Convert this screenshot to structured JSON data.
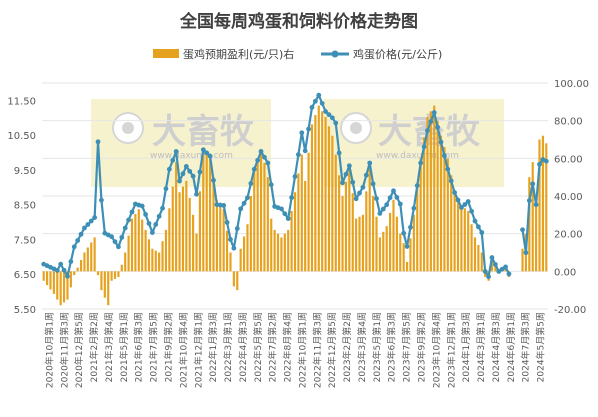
{
  "chart_data": {
    "type": "bar+line",
    "title": "全国每周鸡蛋和饲料价格走势图",
    "legend": [
      {
        "name": "蛋鸡预期盈利(元/只)右",
        "type": "bar",
        "color": "#e6a21e"
      },
      {
        "name": "鸡蛋价格(元/公斤)",
        "type": "line",
        "color": "#3d8fb5"
      }
    ],
    "legend_position": "top",
    "watermark": "大畜牧 www.daxumu.com",
    "y_left": {
      "min": 5.5,
      "max": 12.0,
      "ticks": [
        "5.50",
        "6.50",
        "7.50",
        "8.50",
        "9.50",
        "10.50",
        "11.50"
      ]
    },
    "y_right": {
      "min": -20.0,
      "max": 100.0,
      "ticks": [
        "-20.00",
        "0.00",
        "20.00",
        "40.00",
        "60.00",
        "80.00",
        "100.00"
      ]
    },
    "x_tick_labels": [
      "2020年10月第1周",
      "2020年11月第3周",
      "2020年12月第5周",
      "2021年2月第2周",
      "2021年3月第4周",
      "2021年5月第1周",
      "2021年6月第3周",
      "2021年7月第5周",
      "2021年9月第2周",
      "2021年10月第4周",
      "2021年12月第1周",
      "2022年1月第3周",
      "2022年3月第1周",
      "2022年4月第3周",
      "2022年5月第5周",
      "2022年7月第2周",
      "2022年8月第4周",
      "2022年10月第1周",
      "2022年11月第3周",
      "2022年12月第5周",
      "2023年2月第2周",
      "2023年3月第4周",
      "2023年5月第1周",
      "2023年6月第3周",
      "2023年7月第5周",
      "2023年9月第2周",
      "2023年10月第4周",
      "2023年12月第1周",
      "2024年1月第3周",
      "2024年3月第1周",
      "2024年4月第3周",
      "2024年6月第1周",
      "2024年7月第3周",
      "2024年5月第5周"
    ],
    "egg_price_anchors": [
      [
        0,
        6.79
      ],
      [
        4,
        6.61
      ],
      [
        5,
        6.79
      ],
      [
        7,
        6.44
      ],
      [
        9,
        7.29
      ],
      [
        12,
        7.83
      ],
      [
        15,
        8.13
      ],
      [
        16,
        10.31
      ],
      [
        17,
        8.63
      ],
      [
        18,
        7.68
      ],
      [
        20,
        7.58
      ],
      [
        22,
        7.29
      ],
      [
        24,
        7.83
      ],
      [
        27,
        8.52
      ],
      [
        29,
        8.46
      ],
      [
        30,
        8.22
      ],
      [
        32,
        7.7
      ],
      [
        35,
        8.4
      ],
      [
        37,
        9.52
      ],
      [
        39,
        10.03
      ],
      [
        40,
        9.18
      ],
      [
        42,
        9.6
      ],
      [
        44,
        9.32
      ],
      [
        45,
        8.8
      ],
      [
        47,
        10.08
      ],
      [
        49,
        9.9
      ],
      [
        51,
        8.5
      ],
      [
        53,
        8.48
      ],
      [
        55,
        7.5
      ],
      [
        56,
        7.25
      ],
      [
        58,
        8.38
      ],
      [
        60,
        8.7
      ],
      [
        62,
        9.52
      ],
      [
        64,
        10.03
      ],
      [
        66,
        9.7
      ],
      [
        68,
        8.45
      ],
      [
        70,
        8.38
      ],
      [
        72,
        8.1
      ],
      [
        74,
        9.31
      ],
      [
        76,
        10.57
      ],
      [
        77,
        10.05
      ],
      [
        79,
        11.3
      ],
      [
        81,
        11.65
      ],
      [
        83,
        11.18
      ],
      [
        85,
        11.0
      ],
      [
        86,
        10.85
      ],
      [
        88,
        9.13
      ],
      [
        90,
        9.62
      ],
      [
        92,
        8.67
      ],
      [
        94,
        9.0
      ],
      [
        96,
        9.7
      ],
      [
        97,
        9.1
      ],
      [
        99,
        8.25
      ],
      [
        101,
        8.5
      ],
      [
        103,
        8.9
      ],
      [
        105,
        8.52
      ],
      [
        106,
        7.68
      ],
      [
        107,
        7.3
      ],
      [
        109,
        8.4
      ],
      [
        111,
        9.7
      ],
      [
        113,
        10.63
      ],
      [
        115,
        11.15
      ],
      [
        117,
        10.3
      ],
      [
        119,
        9.52
      ],
      [
        121,
        8.85
      ],
      [
        123,
        8.42
      ],
      [
        125,
        8.59
      ],
      [
        127,
        8.03
      ],
      [
        129,
        7.7
      ],
      [
        130,
        6.58
      ],
      [
        131,
        6.43
      ],
      [
        132,
        6.98
      ],
      [
        134,
        6.58
      ],
      [
        136,
        6.71
      ],
      [
        137,
        6.51
      ],
      [
        138,
        null
      ],
      [
        139,
        null
      ],
      [
        140,
        null
      ],
      [
        141,
        7.78
      ],
      [
        142,
        7.12
      ],
      [
        143,
        8.62
      ],
      [
        144,
        9.1
      ],
      [
        145,
        8.5
      ],
      [
        146,
        9.66
      ],
      [
        147,
        9.8
      ],
      [
        148,
        9.75
      ]
    ],
    "profit_anchors": [
      [
        0,
        -5
      ],
      [
        3,
        -12
      ],
      [
        5,
        -18
      ],
      [
        7,
        -15
      ],
      [
        9,
        -2
      ],
      [
        12,
        10
      ],
      [
        15,
        18
      ],
      [
        16,
        -2
      ],
      [
        17,
        -10
      ],
      [
        19,
        -18
      ],
      [
        20,
        -5
      ],
      [
        22,
        -3
      ],
      [
        24,
        10
      ],
      [
        26,
        28
      ],
      [
        28,
        33
      ],
      [
        30,
        22
      ],
      [
        32,
        12
      ],
      [
        34,
        10
      ],
      [
        36,
        22
      ],
      [
        38,
        45
      ],
      [
        39,
        58
      ],
      [
        40,
        42
      ],
      [
        42,
        48
      ],
      [
        44,
        30
      ],
      [
        45,
        20
      ],
      [
        47,
        65
      ],
      [
        49,
        62
      ],
      [
        51,
        38
      ],
      [
        53,
        33
      ],
      [
        55,
        10
      ],
      [
        56,
        -8
      ],
      [
        57,
        -10
      ],
      [
        58,
        12
      ],
      [
        60,
        25
      ],
      [
        62,
        55
      ],
      [
        64,
        65
      ],
      [
        66,
        50
      ],
      [
        67,
        28
      ],
      [
        68,
        22
      ],
      [
        70,
        18
      ],
      [
        72,
        22
      ],
      [
        74,
        42
      ],
      [
        76,
        62
      ],
      [
        77,
        48
      ],
      [
        79,
        78
      ],
      [
        81,
        88
      ],
      [
        83,
        82
      ],
      [
        85,
        72
      ],
      [
        86,
        62
      ],
      [
        88,
        40
      ],
      [
        90,
        55
      ],
      [
        92,
        28
      ],
      [
        94,
        30
      ],
      [
        96,
        55
      ],
      [
        97,
        40
      ],
      [
        99,
        18
      ],
      [
        101,
        24
      ],
      [
        103,
        38
      ],
      [
        105,
        20
      ],
      [
        106,
        15
      ],
      [
        107,
        5
      ],
      [
        109,
        30
      ],
      [
        111,
        60
      ],
      [
        113,
        82
      ],
      [
        115,
        88
      ],
      [
        117,
        72
      ],
      [
        119,
        60
      ],
      [
        121,
        42
      ],
      [
        123,
        35
      ],
      [
        125,
        32
      ],
      [
        127,
        18
      ],
      [
        129,
        10
      ],
      [
        130,
        -3
      ],
      [
        131,
        -5
      ],
      [
        132,
        8
      ],
      [
        134,
        0
      ],
      [
        136,
        2
      ],
      [
        137,
        -3
      ],
      [
        138,
        null
      ],
      [
        139,
        null
      ],
      [
        140,
        null
      ],
      [
        141,
        12
      ],
      [
        142,
        20
      ],
      [
        143,
        50
      ],
      [
        144,
        58
      ],
      [
        145,
        40
      ],
      [
        146,
        70
      ],
      [
        147,
        72
      ],
      [
        148,
        68
      ]
    ]
  }
}
